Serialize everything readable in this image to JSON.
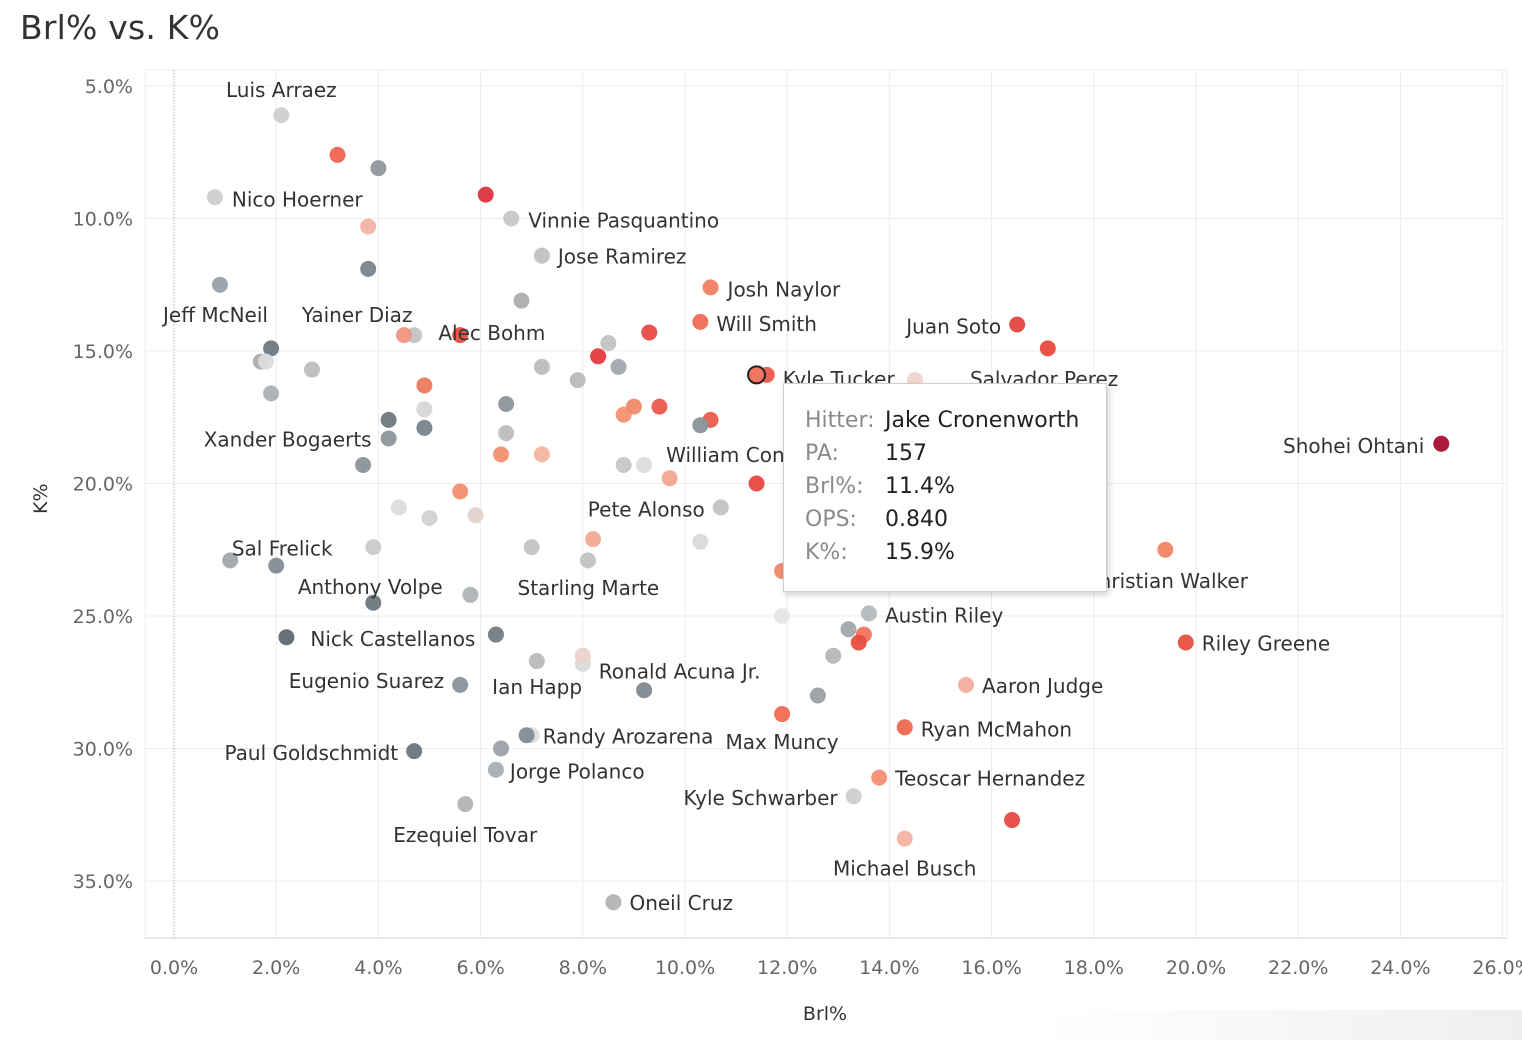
{
  "chart_data": {
    "type": "scatter",
    "title": "Brl% vs. K%",
    "xlabel": "Brl%",
    "ylabel": "K%",
    "xlim": [
      -0.6,
      26.0
    ],
    "ylim": [
      38.0,
      4.0
    ],
    "y_inverted": true,
    "x_ticks": [
      0,
      2,
      4,
      6,
      8,
      10,
      12,
      14,
      16,
      18,
      20,
      22,
      24,
      26
    ],
    "x_tick_labels": [
      "0.0%",
      "2.0%",
      "4.0%",
      "6.0%",
      "8.0%",
      "10.0%",
      "12.0%",
      "14.0%",
      "16.0%",
      "18.0%",
      "20.0%",
      "22.0%",
      "24.0%",
      "26.0%"
    ],
    "y_ticks": [
      5,
      10,
      15,
      20,
      25,
      30,
      35
    ],
    "y_tick_labels": [
      "5.0%",
      "10.0%",
      "15.0%",
      "20.0%",
      "25.0%",
      "30.0%",
      "35.0%"
    ],
    "grid": true,
    "color_legend": {
      "scale": "OPS",
      "low": "#5a646c",
      "mid": "#d8d8d8",
      "high": "#a80e32"
    },
    "points": [
      {
        "name": "Luis Arraez",
        "x": 2.1,
        "y": 6.1,
        "color": "#cfcfcf",
        "label": true
      },
      {
        "name": "",
        "x": 3.2,
        "y": 7.6,
        "color": "#ef6450"
      },
      {
        "name": "",
        "x": 4.0,
        "y": 8.1,
        "color": "#8f979d"
      },
      {
        "name": "Nico Hoerner",
        "x": 0.8,
        "y": 9.2,
        "color": "#cdcdcd",
        "label": true
      },
      {
        "name": "",
        "x": 6.1,
        "y": 9.1,
        "color": "#dc3440"
      },
      {
        "name": "",
        "x": 3.8,
        "y": 10.3,
        "color": "#f2b2a6"
      },
      {
        "name": "Vinnie Pasquantino",
        "x": 6.6,
        "y": 10.0,
        "color": "#c8c8c8",
        "label": true
      },
      {
        "name": "Jose Ramirez",
        "x": 7.2,
        "y": 11.4,
        "color": "#c1c1c1",
        "label": true
      },
      {
        "name": "",
        "x": 3.8,
        "y": 11.9,
        "color": "#7a848b"
      },
      {
        "name": "Jeff McNeil",
        "x": 0.9,
        "y": 12.5,
        "color": "#9aa1a6",
        "label": true
      },
      {
        "name": "",
        "x": 6.8,
        "y": 13.1,
        "color": "#adadad"
      },
      {
        "name": "Josh Naylor",
        "x": 10.5,
        "y": 12.6,
        "color": "#f08063",
        "label": true
      },
      {
        "name": "Yainer Diaz",
        "x": 4.7,
        "y": 14.4,
        "color": "#c3c3c3",
        "label": true
      },
      {
        "name": "",
        "x": 4.5,
        "y": 14.4,
        "color": "#f2957f"
      },
      {
        "name": "",
        "x": 5.6,
        "y": 14.4,
        "color": "#e84d45"
      },
      {
        "name": "Will Smith",
        "x": 10.3,
        "y": 13.9,
        "color": "#ef6c56",
        "label": true
      },
      {
        "name": "Alec Bohm",
        "x": 8.5,
        "y": 14.7,
        "color": "#c3c3c3",
        "label": true
      },
      {
        "name": "",
        "x": 9.3,
        "y": 14.3,
        "color": "#e84c45"
      },
      {
        "name": "Juan Soto",
        "x": 16.5,
        "y": 14.0,
        "color": "#e64640",
        "label": true
      },
      {
        "name": "",
        "x": 17.1,
        "y": 14.9,
        "color": "#e7493f"
      },
      {
        "name": "",
        "x": 1.9,
        "y": 14.9,
        "color": "#6d777e"
      },
      {
        "name": "",
        "x": 1.7,
        "y": 15.4,
        "color": "#adadad"
      },
      {
        "name": "",
        "x": 1.8,
        "y": 15.4,
        "color": "#dcdcdc"
      },
      {
        "name": "",
        "x": 2.7,
        "y": 15.7,
        "color": "#bcbcbc"
      },
      {
        "name": "",
        "x": 8.3,
        "y": 15.2,
        "color": "#e43a3d"
      },
      {
        "name": "",
        "x": 7.2,
        "y": 15.6,
        "color": "#bcbcbc"
      },
      {
        "name": "",
        "x": 8.7,
        "y": 15.6,
        "color": "#a1a8ad"
      },
      {
        "name": "",
        "x": 7.9,
        "y": 16.1,
        "color": "#bbbbbb"
      },
      {
        "name": "Kyle Tucker",
        "x": 11.6,
        "y": 15.9,
        "color": "#ec5a4b",
        "label": true
      },
      {
        "name": "Salvador Perez",
        "x": 14.5,
        "y": 16.1,
        "color": "#f1d4cc",
        "label": true
      },
      {
        "name": "",
        "x": 1.9,
        "y": 16.6,
        "color": "#aab0b4"
      },
      {
        "name": "",
        "x": 4.9,
        "y": 16.3,
        "color": "#ef7a61"
      },
      {
        "name": "",
        "x": 4.9,
        "y": 17.2,
        "color": "#d6d6d6"
      },
      {
        "name": "",
        "x": 6.5,
        "y": 17.0,
        "color": "#8d969c"
      },
      {
        "name": "",
        "x": 8.8,
        "y": 17.4,
        "color": "#f2916f"
      },
      {
        "name": "",
        "x": 9.0,
        "y": 17.1,
        "color": "#f08a6a"
      },
      {
        "name": "",
        "x": 9.5,
        "y": 17.1,
        "color": "#e95b4c"
      },
      {
        "name": "",
        "x": 10.5,
        "y": 17.6,
        "color": "#ea5b4a"
      },
      {
        "name": "",
        "x": 10.3,
        "y": 17.8,
        "color": "#8a949a"
      },
      {
        "name": "Xander Bogaerts",
        "x": 4.2,
        "y": 18.3,
        "color": "#8d969c",
        "label": true
      },
      {
        "name": "",
        "x": 4.2,
        "y": 17.6,
        "color": "#6e787f"
      },
      {
        "name": "",
        "x": 4.9,
        "y": 17.9,
        "color": "#79838a"
      },
      {
        "name": "",
        "x": 6.5,
        "y": 18.1,
        "color": "#bdbdbd"
      },
      {
        "name": "",
        "x": 6.4,
        "y": 18.9,
        "color": "#f1916f"
      },
      {
        "name": "",
        "x": 7.2,
        "y": 18.9,
        "color": "#f3b59f"
      },
      {
        "name": "William Contreras",
        "x": 9.2,
        "y": 19.3,
        "color": "#dcdcdc",
        "label": true
      },
      {
        "name": "",
        "x": 8.8,
        "y": 19.3,
        "color": "#c7c7c7"
      },
      {
        "name": "",
        "x": 9.7,
        "y": 19.8,
        "color": "#f3a78f"
      },
      {
        "name": "",
        "x": 11.4,
        "y": 20.0,
        "color": "#e8473f"
      },
      {
        "name": "Shohei Ohtani",
        "x": 24.8,
        "y": 18.5,
        "color": "#a80e32",
        "label": true
      },
      {
        "name": "",
        "x": 3.7,
        "y": 19.3,
        "color": "#8a9399"
      },
      {
        "name": "",
        "x": 5.6,
        "y": 20.3,
        "color": "#f2906f"
      },
      {
        "name": "Pete Alonso",
        "x": 10.7,
        "y": 20.9,
        "color": "#c3c3c3",
        "label": true
      },
      {
        "name": "",
        "x": 4.4,
        "y": 20.9,
        "color": "#dcdcdc"
      },
      {
        "name": "",
        "x": 5.0,
        "y": 21.3,
        "color": "#d2d2d2"
      },
      {
        "name": "",
        "x": 5.9,
        "y": 21.2,
        "color": "#e3d2cf"
      },
      {
        "name": "Sal Frelick",
        "x": 1.1,
        "y": 22.9,
        "color": "#a1a8ad",
        "label": true
      },
      {
        "name": "",
        "x": 3.9,
        "y": 22.4,
        "color": "#cbcbcb"
      },
      {
        "name": "",
        "x": 2.0,
        "y": 23.1,
        "color": "#838c92"
      },
      {
        "name": "",
        "x": 7.0,
        "y": 22.4,
        "color": "#c4c4c4"
      },
      {
        "name": "",
        "x": 8.2,
        "y": 22.1,
        "color": "#f4a695"
      },
      {
        "name": "",
        "x": 10.3,
        "y": 22.2,
        "color": "#dadada"
      },
      {
        "name": "",
        "x": 8.1,
        "y": 22.9,
        "color": "#c2c2c2"
      },
      {
        "name": "",
        "x": 11.9,
        "y": 23.3,
        "color": "#f0866a"
      },
      {
        "name": "Christian Walker",
        "x": 19.4,
        "y": 22.5,
        "color": "#f08563",
        "label": true
      },
      {
        "name": "Starling Marte",
        "x": 5.8,
        "y": 24.2,
        "color": "#aeb3b6",
        "label": true
      },
      {
        "name": "Anthony Volpe",
        "x": 3.9,
        "y": 24.5,
        "color": "#6d777e",
        "label": true
      },
      {
        "name": "",
        "x": 11.9,
        "y": 25.0,
        "color": "#e6e6e6"
      },
      {
        "name": "Austin Riley",
        "x": 13.6,
        "y": 24.9,
        "color": "#b5babd",
        "label": true
      },
      {
        "name": "Nick Castellanos",
        "x": 2.2,
        "y": 25.8,
        "color": "#5e686f",
        "label": true
      },
      {
        "name": "",
        "x": 6.3,
        "y": 25.7,
        "color": "#727c83"
      },
      {
        "name": "",
        "x": 13.2,
        "y": 25.5,
        "color": "#a0a7ab"
      },
      {
        "name": "",
        "x": 13.5,
        "y": 25.7,
        "color": "#f0745d"
      },
      {
        "name": "",
        "x": 13.4,
        "y": 26.0,
        "color": "#e84d40"
      },
      {
        "name": "Riley Greene",
        "x": 19.8,
        "y": 26.0,
        "color": "#e8503f",
        "label": true
      },
      {
        "name": "",
        "x": 12.9,
        "y": 26.5,
        "color": "#b7b7b7"
      },
      {
        "name": "Ronald Acuna Jr.",
        "x": 8.0,
        "y": 26.8,
        "color": "#dadada",
        "label": true
      },
      {
        "name": "",
        "x": 8.0,
        "y": 26.5,
        "color": "#e9d3cc"
      },
      {
        "name": "",
        "x": 7.1,
        "y": 26.7,
        "color": "#b9b9b9"
      },
      {
        "name": "Eugenio Suarez",
        "x": 5.6,
        "y": 27.6,
        "color": "#8a9399",
        "label": true
      },
      {
        "name": "Ian Happ",
        "x": 9.2,
        "y": 27.8,
        "color": "#7f888f",
        "label": true
      },
      {
        "name": "Aaron Judge",
        "x": 15.5,
        "y": 27.6,
        "color": "#f4ad9c",
        "label": true
      },
      {
        "name": "",
        "x": 12.6,
        "y": 28.0,
        "color": "#9aa0a4"
      },
      {
        "name": "Max Muncy",
        "x": 11.9,
        "y": 28.7,
        "color": "#ef6a52",
        "label": true
      },
      {
        "name": "Ryan McMahon",
        "x": 14.3,
        "y": 29.2,
        "color": "#ee6850",
        "label": true
      },
      {
        "name": "Randy Arozarena",
        "x": 7.0,
        "y": 29.5,
        "color": "#dedede",
        "label": true
      },
      {
        "name": "",
        "x": 6.9,
        "y": 29.5,
        "color": "#838c92"
      },
      {
        "name": "Paul Goldschmidt",
        "x": 4.7,
        "y": 30.1,
        "color": "#6c767d",
        "label": true
      },
      {
        "name": "",
        "x": 6.4,
        "y": 30.0,
        "color": "#9ba1a6"
      },
      {
        "name": "Jorge Polanco",
        "x": 6.3,
        "y": 30.8,
        "color": "#a9aeb2",
        "label": true
      },
      {
        "name": "Teoscar Hernandez",
        "x": 13.8,
        "y": 31.1,
        "color": "#f48d74",
        "label": true
      },
      {
        "name": "Kyle Schwarber",
        "x": 13.3,
        "y": 31.8,
        "color": "#cfcfcf",
        "label": true
      },
      {
        "name": "Ezequiel Tovar",
        "x": 5.7,
        "y": 32.1,
        "color": "#b4b4b4",
        "label": true
      },
      {
        "name": "",
        "x": 16.4,
        "y": 32.7,
        "color": "#e64a40"
      },
      {
        "name": "Michael Busch",
        "x": 14.3,
        "y": 33.4,
        "color": "#f5b3a4",
        "label": true
      },
      {
        "name": "Oneil Cruz",
        "x": 8.6,
        "y": 35.8,
        "color": "#b3b3b3",
        "label": true
      }
    ],
    "highlighted_point": {
      "name": "Jake Cronenworth",
      "x": 11.4,
      "y": 15.9
    }
  },
  "tooltip": {
    "hitter_key": "Hitter:",
    "hitter_val": "Jake Cronenworth",
    "pa_key": "PA:",
    "pa_val": "157",
    "brl_key": "Brl%:",
    "brl_val": "11.4%",
    "ops_key": "OPS:",
    "ops_val": "0.840",
    "k_key": "K%:",
    "k_val": "15.9%"
  }
}
